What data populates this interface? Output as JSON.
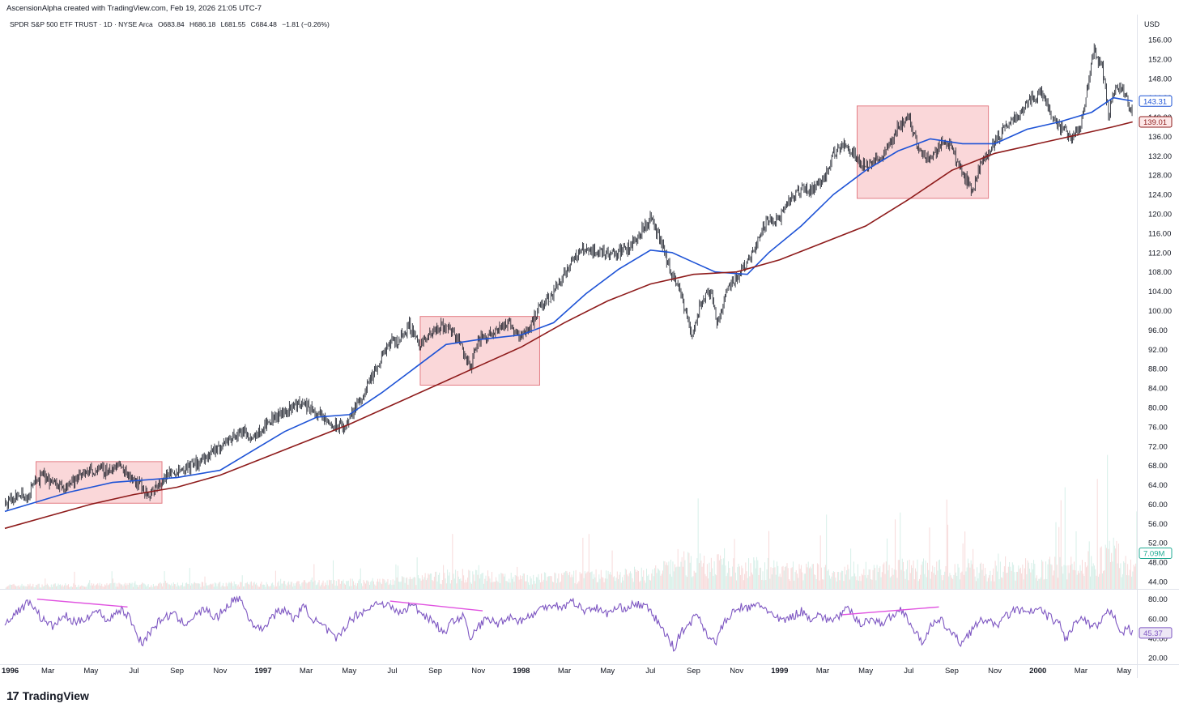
{
  "header": {
    "credit": "AscensionAlpha created with TradingView.com, Feb 19, 2026 21:05 UTC-7",
    "symbol": "SPDR S&P 500 ETF TRUST · 1D · NYSE Arca",
    "open": "O683.84",
    "high": "H686.18",
    "low": "L681.55",
    "close": "C684.48",
    "change": "−1.81 (−0.26%)",
    "currency": "USD"
  },
  "branding": {
    "logo_mark": "17",
    "logo_text": "TradingView"
  },
  "chart_data": {
    "type": "line",
    "price_axis": {
      "ticks": [
        "156.00",
        "152.00",
        "148.00",
        "144.00",
        "140.00",
        "136.00",
        "132.00",
        "128.00",
        "124.00",
        "120.00",
        "116.00",
        "112.00",
        "108.00",
        "104.00",
        "100.00",
        "96.00",
        "92.00",
        "88.00",
        "84.00",
        "80.00",
        "76.00",
        "72.00",
        "68.00",
        "64.00",
        "60.00",
        "56.00",
        "52.00",
        "48.00",
        "44.00"
      ],
      "tick_values": [
        156,
        152,
        148,
        144,
        140,
        136,
        132,
        128,
        124,
        120,
        116,
        112,
        108,
        104,
        100,
        96,
        92,
        88,
        84,
        80,
        76,
        72,
        68,
        64,
        60,
        56,
        52,
        48,
        44
      ],
      "range": [
        42.5,
        157.5
      ]
    },
    "rsi_axis": {
      "ticks": [
        "80.00",
        "60.00",
        "40.00",
        "20.00"
      ],
      "tick_values": [
        80,
        60,
        40,
        20
      ],
      "range": [
        15,
        88
      ]
    },
    "x_axis": {
      "labels": [
        "1996",
        "Mar",
        "May",
        "Jul",
        "Sep",
        "Nov",
        "1997",
        "Mar",
        "May",
        "Jul",
        "Sep",
        "Nov",
        "1998",
        "Mar",
        "May",
        "Jul",
        "Sep",
        "Nov",
        "1999",
        "Mar",
        "May",
        "Jul",
        "Sep",
        "Nov",
        "2000",
        "Mar",
        "May"
      ],
      "bold": [
        true,
        false,
        false,
        false,
        false,
        false,
        true,
        false,
        false,
        false,
        false,
        false,
        true,
        false,
        false,
        false,
        false,
        false,
        true,
        false,
        false,
        false,
        false,
        false,
        true,
        false,
        false
      ],
      "months": [
        0,
        2,
        4,
        6,
        8,
        10,
        12,
        14,
        16,
        18,
        20,
        22,
        24,
        26,
        28,
        30,
        32,
        34,
        36,
        38,
        40,
        42,
        44,
        46,
        48,
        50,
        52
      ],
      "month_range": [
        0,
        52.6
      ]
    },
    "price_series": {
      "name": "",
      "color": "#131722",
      "points": [
        [
          0,
          60
        ],
        [
          0.7,
          62
        ],
        [
          1,
          61
        ],
        [
          1.3,
          64
        ],
        [
          1.8,
          66
        ],
        [
          2.3,
          64
        ],
        [
          2.8,
          64
        ],
        [
          3.3,
          65
        ],
        [
          3.8,
          67
        ],
        [
          4.3,
          67
        ],
        [
          4.8,
          67
        ],
        [
          5.3,
          68
        ],
        [
          5.8,
          66
        ],
        [
          6.3,
          64
        ],
        [
          6.6,
          62
        ],
        [
          7,
          63
        ],
        [
          7.5,
          66
        ],
        [
          8,
          67
        ],
        [
          8.7,
          68
        ],
        [
          9.5,
          70
        ],
        [
          10.3,
          73
        ],
        [
          11,
          75
        ],
        [
          11.5,
          74
        ],
        [
          12,
          76
        ],
        [
          12.5,
          78
        ],
        [
          13,
          79
        ],
        [
          13.6,
          81
        ],
        [
          14.2,
          80
        ],
        [
          14.7,
          78
        ],
        [
          15.3,
          76
        ],
        [
          15.8,
          76
        ],
        [
          16.3,
          80
        ],
        [
          16.8,
          84
        ],
        [
          17.3,
          88
        ],
        [
          17.8,
          93
        ],
        [
          18.3,
          94
        ],
        [
          18.8,
          97
        ],
        [
          19.3,
          93
        ],
        [
          19.8,
          95
        ],
        [
          20.3,
          97
        ],
        [
          20.8,
          96
        ],
        [
          21.2,
          93
        ],
        [
          21.6,
          88
        ],
        [
          22,
          94
        ],
        [
          22.5,
          95
        ],
        [
          23,
          97
        ],
        [
          23.5,
          97
        ],
        [
          23.9,
          95
        ],
        [
          24.3,
          96
        ],
        [
          24.8,
          100
        ],
        [
          25.5,
          104
        ],
        [
          26,
          108
        ],
        [
          26.5,
          111
        ],
        [
          27,
          113
        ],
        [
          27.5,
          112
        ],
        [
          28,
          112
        ],
        [
          28.5,
          112
        ],
        [
          29,
          113
        ],
        [
          29.5,
          116
        ],
        [
          30,
          119
        ],
        [
          30.5,
          114
        ],
        [
          31,
          107
        ],
        [
          31.3,
          105
        ],
        [
          31.6,
          100
        ],
        [
          31.9,
          95
        ],
        [
          32.3,
          101
        ],
        [
          32.8,
          104
        ],
        [
          33.1,
          97
        ],
        [
          33.5,
          104
        ],
        [
          34,
          107
        ],
        [
          34.5,
          110
        ],
        [
          35,
          115
        ],
        [
          35.5,
          119
        ],
        [
          36,
          119
        ],
        [
          36.5,
          123
        ],
        [
          37,
          125
        ],
        [
          37.5,
          125
        ],
        [
          38,
          127
        ],
        [
          38.5,
          132
        ],
        [
          39,
          135
        ],
        [
          39.5,
          132
        ],
        [
          40,
          130
        ],
        [
          40.5,
          131
        ],
        [
          41,
          133
        ],
        [
          41.5,
          138
        ],
        [
          42,
          140
        ],
        [
          42.5,
          133
        ],
        [
          43,
          131
        ],
        [
          43.5,
          135
        ],
        [
          44,
          134
        ],
        [
          44.5,
          128
        ],
        [
          45,
          125
        ],
        [
          45.3,
          130
        ],
        [
          45.7,
          133
        ],
        [
          46.2,
          136
        ],
        [
          46.7,
          139
        ],
        [
          47.2,
          141
        ],
        [
          47.7,
          144
        ],
        [
          48.2,
          145
        ],
        [
          48.7,
          140
        ],
        [
          49.2,
          137
        ],
        [
          49.6,
          136
        ],
        [
          50,
          138
        ],
        [
          50.3,
          146
        ],
        [
          50.6,
          154
        ],
        [
          51,
          150
        ],
        [
          51.3,
          140
        ],
        [
          51.6,
          147
        ],
        [
          52,
          145
        ],
        [
          52.4,
          141
        ]
      ]
    },
    "ma_fast": {
      "name": "",
      "color": "#1e53d6",
      "last_value": "143.31",
      "points": [
        [
          0,
          58.5
        ],
        [
          1.5,
          60.5
        ],
        [
          3,
          62.5
        ],
        [
          5,
          64.5
        ],
        [
          6.5,
          65
        ],
        [
          8,
          65.5
        ],
        [
          10,
          67
        ],
        [
          11.5,
          71
        ],
        [
          13,
          75
        ],
        [
          14.5,
          78
        ],
        [
          16,
          78.5
        ],
        [
          17.5,
          83
        ],
        [
          19,
          88
        ],
        [
          20.5,
          93
        ],
        [
          22,
          94
        ],
        [
          24,
          95
        ],
        [
          25.5,
          97.5
        ],
        [
          27,
          103.5
        ],
        [
          28.5,
          108.5
        ],
        [
          30,
          112.5
        ],
        [
          31,
          112
        ],
        [
          32,
          110
        ],
        [
          33,
          108
        ],
        [
          34.5,
          107.5
        ],
        [
          35.5,
          112
        ],
        [
          37,
          117.5
        ],
        [
          38.5,
          124
        ],
        [
          40,
          129
        ],
        [
          41.5,
          133
        ],
        [
          43,
          135.5
        ],
        [
          44.5,
          134.5
        ],
        [
          46,
          134.5
        ],
        [
          47.5,
          137.5
        ],
        [
          49,
          139
        ],
        [
          50.5,
          141
        ],
        [
          51.5,
          144
        ],
        [
          52.4,
          143.3
        ]
      ]
    },
    "ma_slow": {
      "name": "",
      "color": "#8e1b1b",
      "last_value": "139.01",
      "points": [
        [
          0,
          55
        ],
        [
          2,
          57.5
        ],
        [
          4,
          60
        ],
        [
          6,
          62
        ],
        [
          8,
          63.5
        ],
        [
          10,
          66
        ],
        [
          12,
          69.5
        ],
        [
          14,
          73
        ],
        [
          16,
          76.5
        ],
        [
          18,
          80.5
        ],
        [
          20,
          84.5
        ],
        [
          22,
          88.5
        ],
        [
          24,
          92.5
        ],
        [
          26,
          97.5
        ],
        [
          28,
          102
        ],
        [
          30,
          105.5
        ],
        [
          32,
          107.5
        ],
        [
          34,
          108
        ],
        [
          36,
          110.5
        ],
        [
          38,
          114
        ],
        [
          40,
          117.5
        ],
        [
          42,
          123
        ],
        [
          44,
          129
        ],
        [
          46,
          132.5
        ],
        [
          48,
          134.5
        ],
        [
          50,
          136.5
        ],
        [
          51.5,
          138
        ],
        [
          52.4,
          139
        ]
      ]
    },
    "rsi_series": {
      "name": "",
      "color": "#7e57c2",
      "last_value": "45.37",
      "points": [
        [
          0,
          55
        ],
        [
          0.7,
          70
        ],
        [
          1.2,
          78
        ],
        [
          1.7,
          60
        ],
        [
          2.2,
          52
        ],
        [
          2.8,
          63
        ],
        [
          3.3,
          55
        ],
        [
          3.8,
          62
        ],
        [
          4.3,
          68
        ],
        [
          4.8,
          58
        ],
        [
          5.3,
          70
        ],
        [
          5.8,
          62
        ],
        [
          6.1,
          45
        ],
        [
          6.4,
          35
        ],
        [
          6.8,
          48
        ],
        [
          7.3,
          60
        ],
        [
          7.8,
          65
        ],
        [
          8.3,
          55
        ],
        [
          8.8,
          62
        ],
        [
          9.3,
          70
        ],
        [
          9.8,
          60
        ],
        [
          10.4,
          75
        ],
        [
          10.9,
          82
        ],
        [
          11.4,
          58
        ],
        [
          11.9,
          48
        ],
        [
          12.4,
          62
        ],
        [
          12.9,
          70
        ],
        [
          13.4,
          60
        ],
        [
          13.9,
          72
        ],
        [
          14.4,
          58
        ],
        [
          14.9,
          50
        ],
        [
          15.4,
          38
        ],
        [
          15.9,
          55
        ],
        [
          16.4,
          65
        ],
        [
          16.9,
          70
        ],
        [
          17.4,
          78
        ],
        [
          17.9,
          72
        ],
        [
          18.4,
          65
        ],
        [
          18.9,
          75
        ],
        [
          19.4,
          65
        ],
        [
          19.9,
          58
        ],
        [
          20.4,
          45
        ],
        [
          20.9,
          60
        ],
        [
          21.4,
          62
        ],
        [
          21.6,
          35
        ],
        [
          21.9,
          50
        ],
        [
          22.4,
          60
        ],
        [
          22.9,
          55
        ],
        [
          23.4,
          62
        ],
        [
          23.9,
          58
        ],
        [
          24.4,
          62
        ],
        [
          24.9,
          70
        ],
        [
          25.4,
          75
        ],
        [
          25.9,
          72
        ],
        [
          26.4,
          78
        ],
        [
          26.9,
          68
        ],
        [
          27.4,
          72
        ],
        [
          27.9,
          65
        ],
        [
          28.4,
          70
        ],
        [
          28.9,
          72
        ],
        [
          29.4,
          75
        ],
        [
          29.9,
          70
        ],
        [
          30.4,
          55
        ],
        [
          30.8,
          40
        ],
        [
          31.1,
          30
        ],
        [
          31.4,
          45
        ],
        [
          31.8,
          55
        ],
        [
          32.2,
          65
        ],
        [
          32.6,
          45
        ],
        [
          33.0,
          35
        ],
        [
          33.4,
          55
        ],
        [
          33.8,
          65
        ],
        [
          34.2,
          72
        ],
        [
          34.6,
          70
        ],
        [
          35.0,
          75
        ],
        [
          35.4,
          70
        ],
        [
          35.8,
          60
        ],
        [
          36.2,
          58
        ],
        [
          36.6,
          62
        ],
        [
          37.0,
          68
        ],
        [
          37.4,
          60
        ],
        [
          37.8,
          65
        ],
        [
          38.2,
          58
        ],
        [
          38.7,
          62
        ],
        [
          39.2,
          70
        ],
        [
          39.7,
          55
        ],
        [
          40.2,
          60
        ],
        [
          40.7,
          55
        ],
        [
          41.2,
          62
        ],
        [
          41.7,
          70
        ],
        [
          42.2,
          50
        ],
        [
          42.6,
          35
        ],
        [
          43.0,
          52
        ],
        [
          43.5,
          58
        ],
        [
          44,
          45
        ],
        [
          44.4,
          35
        ],
        [
          44.8,
          45
        ],
        [
          45.2,
          55
        ],
        [
          45.6,
          60
        ],
        [
          46,
          52
        ],
        [
          46.5,
          62
        ],
        [
          47,
          70
        ],
        [
          47.5,
          65
        ],
        [
          48,
          70
        ],
        [
          48.5,
          62
        ],
        [
          49,
          55
        ],
        [
          49.3,
          38
        ],
        [
          49.7,
          55
        ],
        [
          50.1,
          60
        ],
        [
          50.5,
          50
        ],
        [
          50.9,
          55
        ],
        [
          51.3,
          68
        ],
        [
          51.6,
          62
        ],
        [
          51.9,
          45
        ],
        [
          52.2,
          50
        ],
        [
          52.4,
          45
        ]
      ]
    },
    "volume": {
      "note": "",
      "profile": [
        [
          0,
          4
        ],
        [
          6,
          5
        ],
        [
          12,
          6
        ],
        [
          18,
          9
        ],
        [
          21,
          16
        ],
        [
          24,
          12
        ],
        [
          30,
          18
        ],
        [
          31.5,
          30
        ],
        [
          34,
          26
        ],
        [
          38,
          20
        ],
        [
          42,
          24
        ],
        [
          46,
          22
        ],
        [
          50,
          28
        ],
        [
          51.5,
          40
        ],
        [
          52.4,
          22
        ]
      ]
    },
    "volume_last_value": "7.09M",
    "highlight_boxes": [
      {
        "from_month": 1.45,
        "to_month": 7.3,
        "low": 60.2,
        "high": 68.8
      },
      {
        "from_month": 19.3,
        "to_month": 24.85,
        "low": 84.6,
        "high": 98.8
      },
      {
        "from_month": 39.6,
        "to_month": 45.7,
        "low": 123.2,
        "high": 142.3
      }
    ],
    "rsi_divergence_lines": [
      {
        "from": [
          1.5,
          80
        ],
        "to": [
          5.7,
          72
        ]
      },
      {
        "from": [
          17.9,
          78
        ],
        "to": [
          22.2,
          68
        ]
      },
      {
        "from": [
          38.9,
          64
        ],
        "to": [
          43.4,
          72
        ]
      }
    ],
    "colors": {
      "grid": "#ffffff",
      "box_fill": "#f8c9cc",
      "box_stroke": "#e37c84",
      "divergence": "#e052e0",
      "volume_up": "#d6efe8",
      "volume_down": "#f7dada"
    }
  }
}
